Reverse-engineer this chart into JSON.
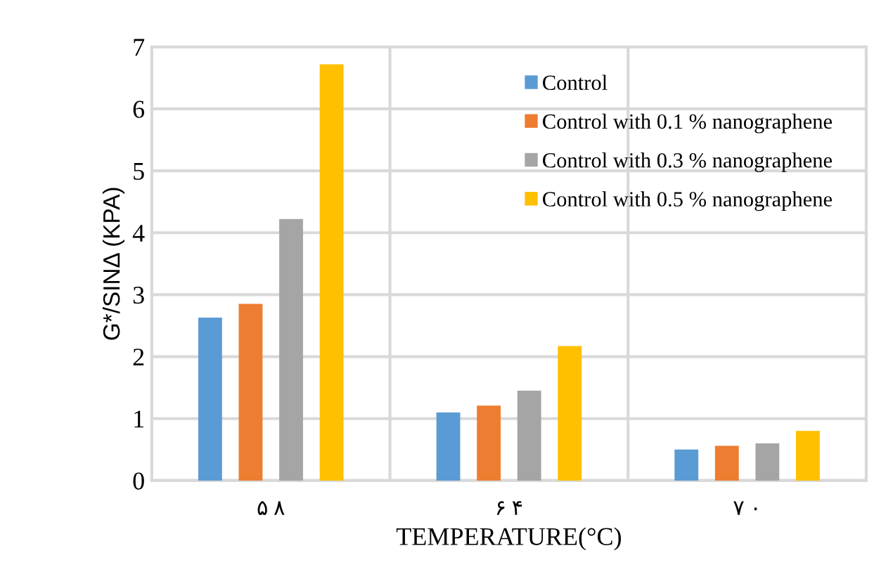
{
  "chart_data": {
    "type": "bar",
    "xlabel": "TEMPERATURE(°C)",
    "ylabel": "G*/SINΔ (KPA)",
    "categories": [
      "۵ ۸",
      "۶ ۴",
      "۷ ۰"
    ],
    "series": [
      {
        "name": "Control",
        "color": "#5b9bd5",
        "values": [
          2.63,
          1.1,
          0.5
        ]
      },
      {
        "name": "Control with 0.1 % nanographene",
        "color": "#ed7d31",
        "values": [
          2.85,
          1.21,
          0.56
        ]
      },
      {
        "name": "Control with 0.3 % nanographene",
        "color": "#a5a5a5",
        "values": [
          4.22,
          1.45,
          0.6
        ]
      },
      {
        "name": "Control with 0.5 % nanographene",
        "color": "#ffc000",
        "values": [
          6.72,
          2.17,
          0.8
        ]
      }
    ],
    "ylim": [
      0,
      7
    ],
    "yticks": [
      0,
      1,
      2,
      3,
      4,
      5,
      6,
      7
    ],
    "grid": true,
    "legend": "top right"
  }
}
